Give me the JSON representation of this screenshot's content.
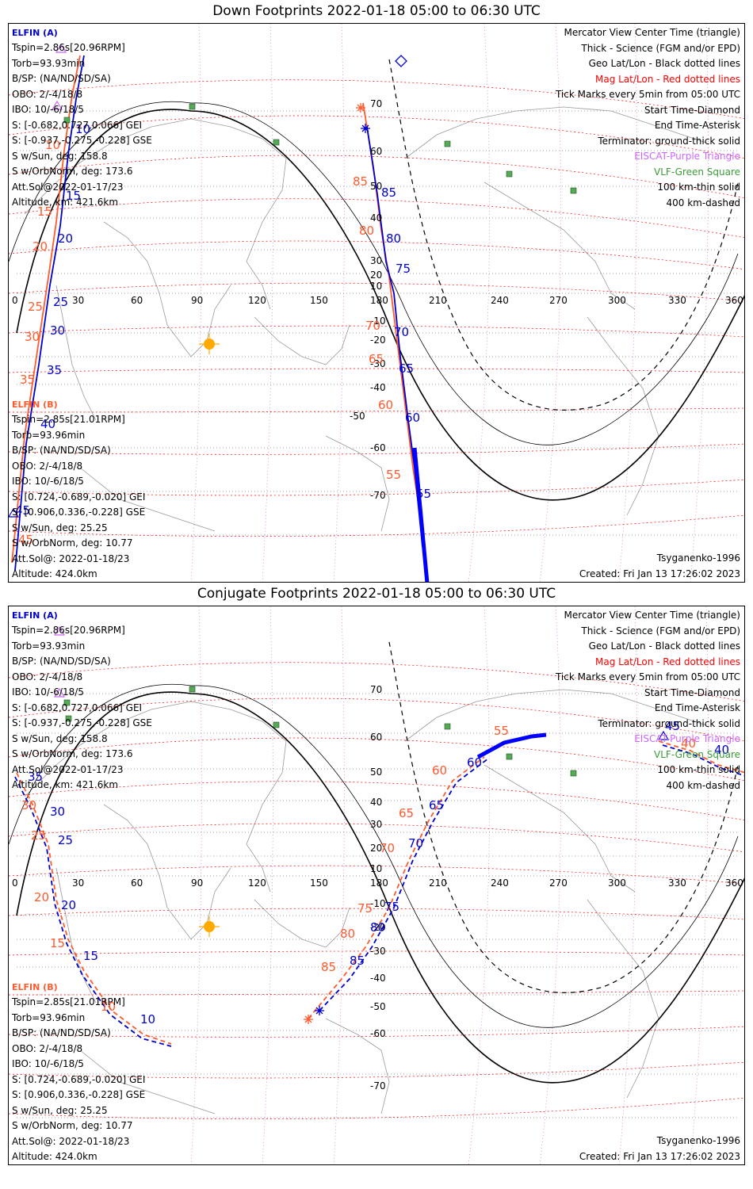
{
  "panels": [
    {
      "title": "Down Footprints 2022-01-18 05:00 to 06:30 UTC",
      "elfin_a": {
        "label": "ELFIN (A)",
        "lines": [
          "Tspin=2.86s[20.96RPM]",
          "Torb=93.93min",
          "B/SP: (NA/ND/SD/SA)",
          "OBO: 2/-4/18/8",
          "IBO: 10/-6/18/5",
          "S: [-0.682,0.727,0.066] GEI",
          "S: [-0.937,-0.275,-0.228] GSE",
          "S w/Sun, deg: 158.8",
          "S w/OrbNorm, deg: 173.6",
          "Att.Sol@2022-01-17/23",
          "Altitude, km: 421.6km"
        ]
      },
      "elfin_b": {
        "label": "ELFIN (B)",
        "lines": [
          "Tspin=2.85s[21.01RPM]",
          "Torb=93.96min",
          "B/SP: (NA/ND/SD/SA)",
          "OBO: 2/-4/18/8",
          "IBO: 10/-6/18/5",
          "S: [0.724,-0.689,-0.020] GEI",
          "S: [0.906,0.336,-0.228] GSE",
          "S w/Sun, deg: 25.25",
          "S w/OrbNorm, deg: 10.77",
          "Att.Sol@: 2022-01-18/23",
          "Altitude: 424.0km"
        ]
      },
      "legend": [
        "Mercator View Center Time (triangle)",
        "Thick - Science (FGM and/or EPD)",
        "Geo Lat/Lon - Black dotted lines",
        "Mag Lat/Lon - Red dotted lines",
        "Tick Marks every 5min from 05:00 UTC",
        "Start Time-Diamond",
        "End Time-Asterisk",
        "Terminator: ground-thick solid",
        "EISCAT-Purple Triangle",
        "VLF-Green Square",
        "100 km-thin solid",
        "400 km-dashed"
      ],
      "model": "Tsyganenko-1996",
      "created": "Created: Fri Jan 13 17:26:02 2023",
      "lon_labels": [
        "0",
        "30",
        "60",
        "90",
        "120",
        "150",
        "180",
        "210",
        "240",
        "270",
        "300",
        "330",
        "360"
      ],
      "lat_labels": [
        "70",
        "60",
        "50",
        "40",
        "30",
        "20",
        "10",
        "-10",
        "-20",
        "-30",
        "-40",
        "-50",
        "-60",
        "-70"
      ],
      "ticks_b": [
        "10",
        "15",
        "20",
        "25",
        "30",
        "35",
        "40",
        "45"
      ],
      "ticks_a": [
        "10",
        "15",
        "20",
        "25",
        "30",
        "35",
        "40",
        "45"
      ],
      "ticks_b2": [
        "85",
        "80",
        "75",
        "70",
        "65",
        "60",
        "55"
      ],
      "ticks_a2": [
        "85",
        "80",
        "75",
        "70",
        "65",
        "60",
        "55"
      ]
    },
    {
      "title": "Conjugate Footprints 2022-01-18 05:00 to 06:30 UTC",
      "elfin_a": {
        "label": "ELFIN (A)",
        "lines": [
          "Tspin=2.86s[20.96RPM]",
          "Torb=93.93min",
          "B/SP: (NA/ND/SD/SA)",
          "OBO: 2/-4/18/8",
          "IBO: 10/-6/18/5",
          "S: [-0.682,0.727,0.066] GEI",
          "S: [-0.937,-0.275,-0.228] GSE",
          "S w/Sun, deg: 158.8",
          "S w/OrbNorm, deg: 173.6",
          "Att.Sol@2022-01-17/23",
          "Altitude, km: 421.6km"
        ]
      },
      "elfin_b": {
        "label": "ELFIN (B)",
        "lines": [
          "Tspin=2.85s[21.01RPM]",
          "Torb=93.96min",
          "B/SP: (NA/ND/SD/SA)",
          "OBO: 2/-4/18/8",
          "IBO: 10/-6/18/5",
          "S: [0.724,-0.689,-0.020] GEI",
          "S: [0.906,0.336,-0.228] GSE",
          "S w/Sun, deg: 25.25",
          "S w/OrbNorm, deg: 10.77",
          "Att.Sol@: 2022-01-18/23",
          "Altitude: 424.0km"
        ]
      },
      "legend": [
        "Mercator View Center Time (triangle)",
        "Thick - Science (FGM and/or EPD)",
        "Geo Lat/Lon - Black dotted lines",
        "Mag Lat/Lon - Red dotted lines",
        "Tick Marks every 5min from 05:00 UTC",
        "Start Time-Diamond",
        "End Time-Asterisk",
        "Terminator: ground-thick solid",
        "EISCAT-Purple Triangle",
        "VLF-Green Square",
        "100 km-thin solid",
        "400 km-dashed"
      ],
      "model": "Tsyganenko-1996",
      "created": "Created: Fri Jan 13 17:26:02 2023",
      "lon_labels": [
        "0",
        "30",
        "60",
        "90",
        "120",
        "150",
        "180",
        "210",
        "240",
        "270",
        "300",
        "330",
        "360"
      ],
      "lat_labels": [
        "70",
        "60",
        "50",
        "40",
        "30",
        "20",
        "10",
        "-10",
        "-20",
        "-30",
        "-40",
        "-50",
        "-60",
        "-70"
      ],
      "ticks_b": [
        "35",
        "30",
        "25",
        "20",
        "15",
        "10"
      ],
      "ticks_a": [
        "35",
        "30",
        "25",
        "20",
        "15",
        "10"
      ],
      "ticks_b2": [
        "85",
        "80",
        "75",
        "70",
        "65",
        "60",
        "55",
        "45",
        "40"
      ],
      "ticks_a2": [
        "85",
        "80",
        "75",
        "70",
        "65",
        "60",
        "55",
        "45",
        "40"
      ]
    }
  ],
  "colors": {
    "elfin_a": "#0000cc",
    "elfin_b": "#ff5a2e",
    "mag_grid": "#ff0000",
    "geo_grid": "#000000",
    "eiscat": "#cc66ff",
    "vlf": "#3a9a3a",
    "sun": "#ffaa00"
  }
}
